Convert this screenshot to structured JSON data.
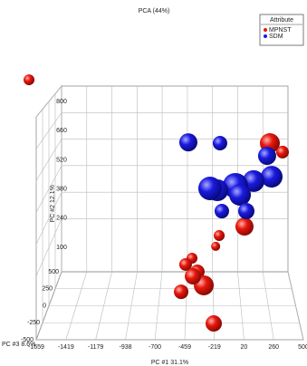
{
  "chart_data": {
    "type": "scatter3d",
    "title": "PCA (44%)",
    "legend_title": "Attribute",
    "legend": "top-right",
    "xlabel": "PC #1 31.1%",
    "ylabel": "PC #2 12.1%",
    "zlabel": "PC #3 8.6%",
    "xlim": [
      -1659,
      500
    ],
    "ylim": [
      -180,
      800
    ],
    "zlim": [
      -500,
      500
    ],
    "xticks": [
      -1659,
      -1419,
      -1179,
      -938,
      -700,
      -459,
      -219,
      20,
      260,
      500
    ],
    "yticks": [
      100,
      240,
      380,
      520,
      660,
      800
    ],
    "zticks": [
      -500,
      -250,
      0,
      250,
      500
    ],
    "grid": true,
    "series": [
      {
        "name": "MPNST",
        "color": "#e8160c",
        "x": [
          274,
          385,
          52,
          -169,
          -200,
          -407,
          -360,
          -463,
          -304,
          -399,
          -502,
          -217,
          -1833
        ],
        "y": [
          600,
          557,
          200,
          157,
          105,
          48,
          -17,
          18,
          -82,
          -39,
          -113,
          -265,
          904
        ],
        "z": [
          -200,
          200,
          -100,
          300,
          400,
          300,
          100,
          200,
          -200,
          0,
          100,
          0,
          300
        ]
      },
      {
        "name": "SDM",
        "color": "#1a1ae0",
        "x": [
          -439,
          -162,
          250,
          290,
          132,
          -27,
          -185,
          13,
          -249,
          -146,
          68
        ],
        "y": [
          604,
          600,
          539,
          439,
          418,
          396,
          374,
          352,
          383,
          274,
          274
        ],
        "z": [
          -100,
          100,
          -100,
          -300,
          -300,
          -500,
          -300,
          -300,
          -400,
          100,
          0
        ]
      }
    ]
  }
}
